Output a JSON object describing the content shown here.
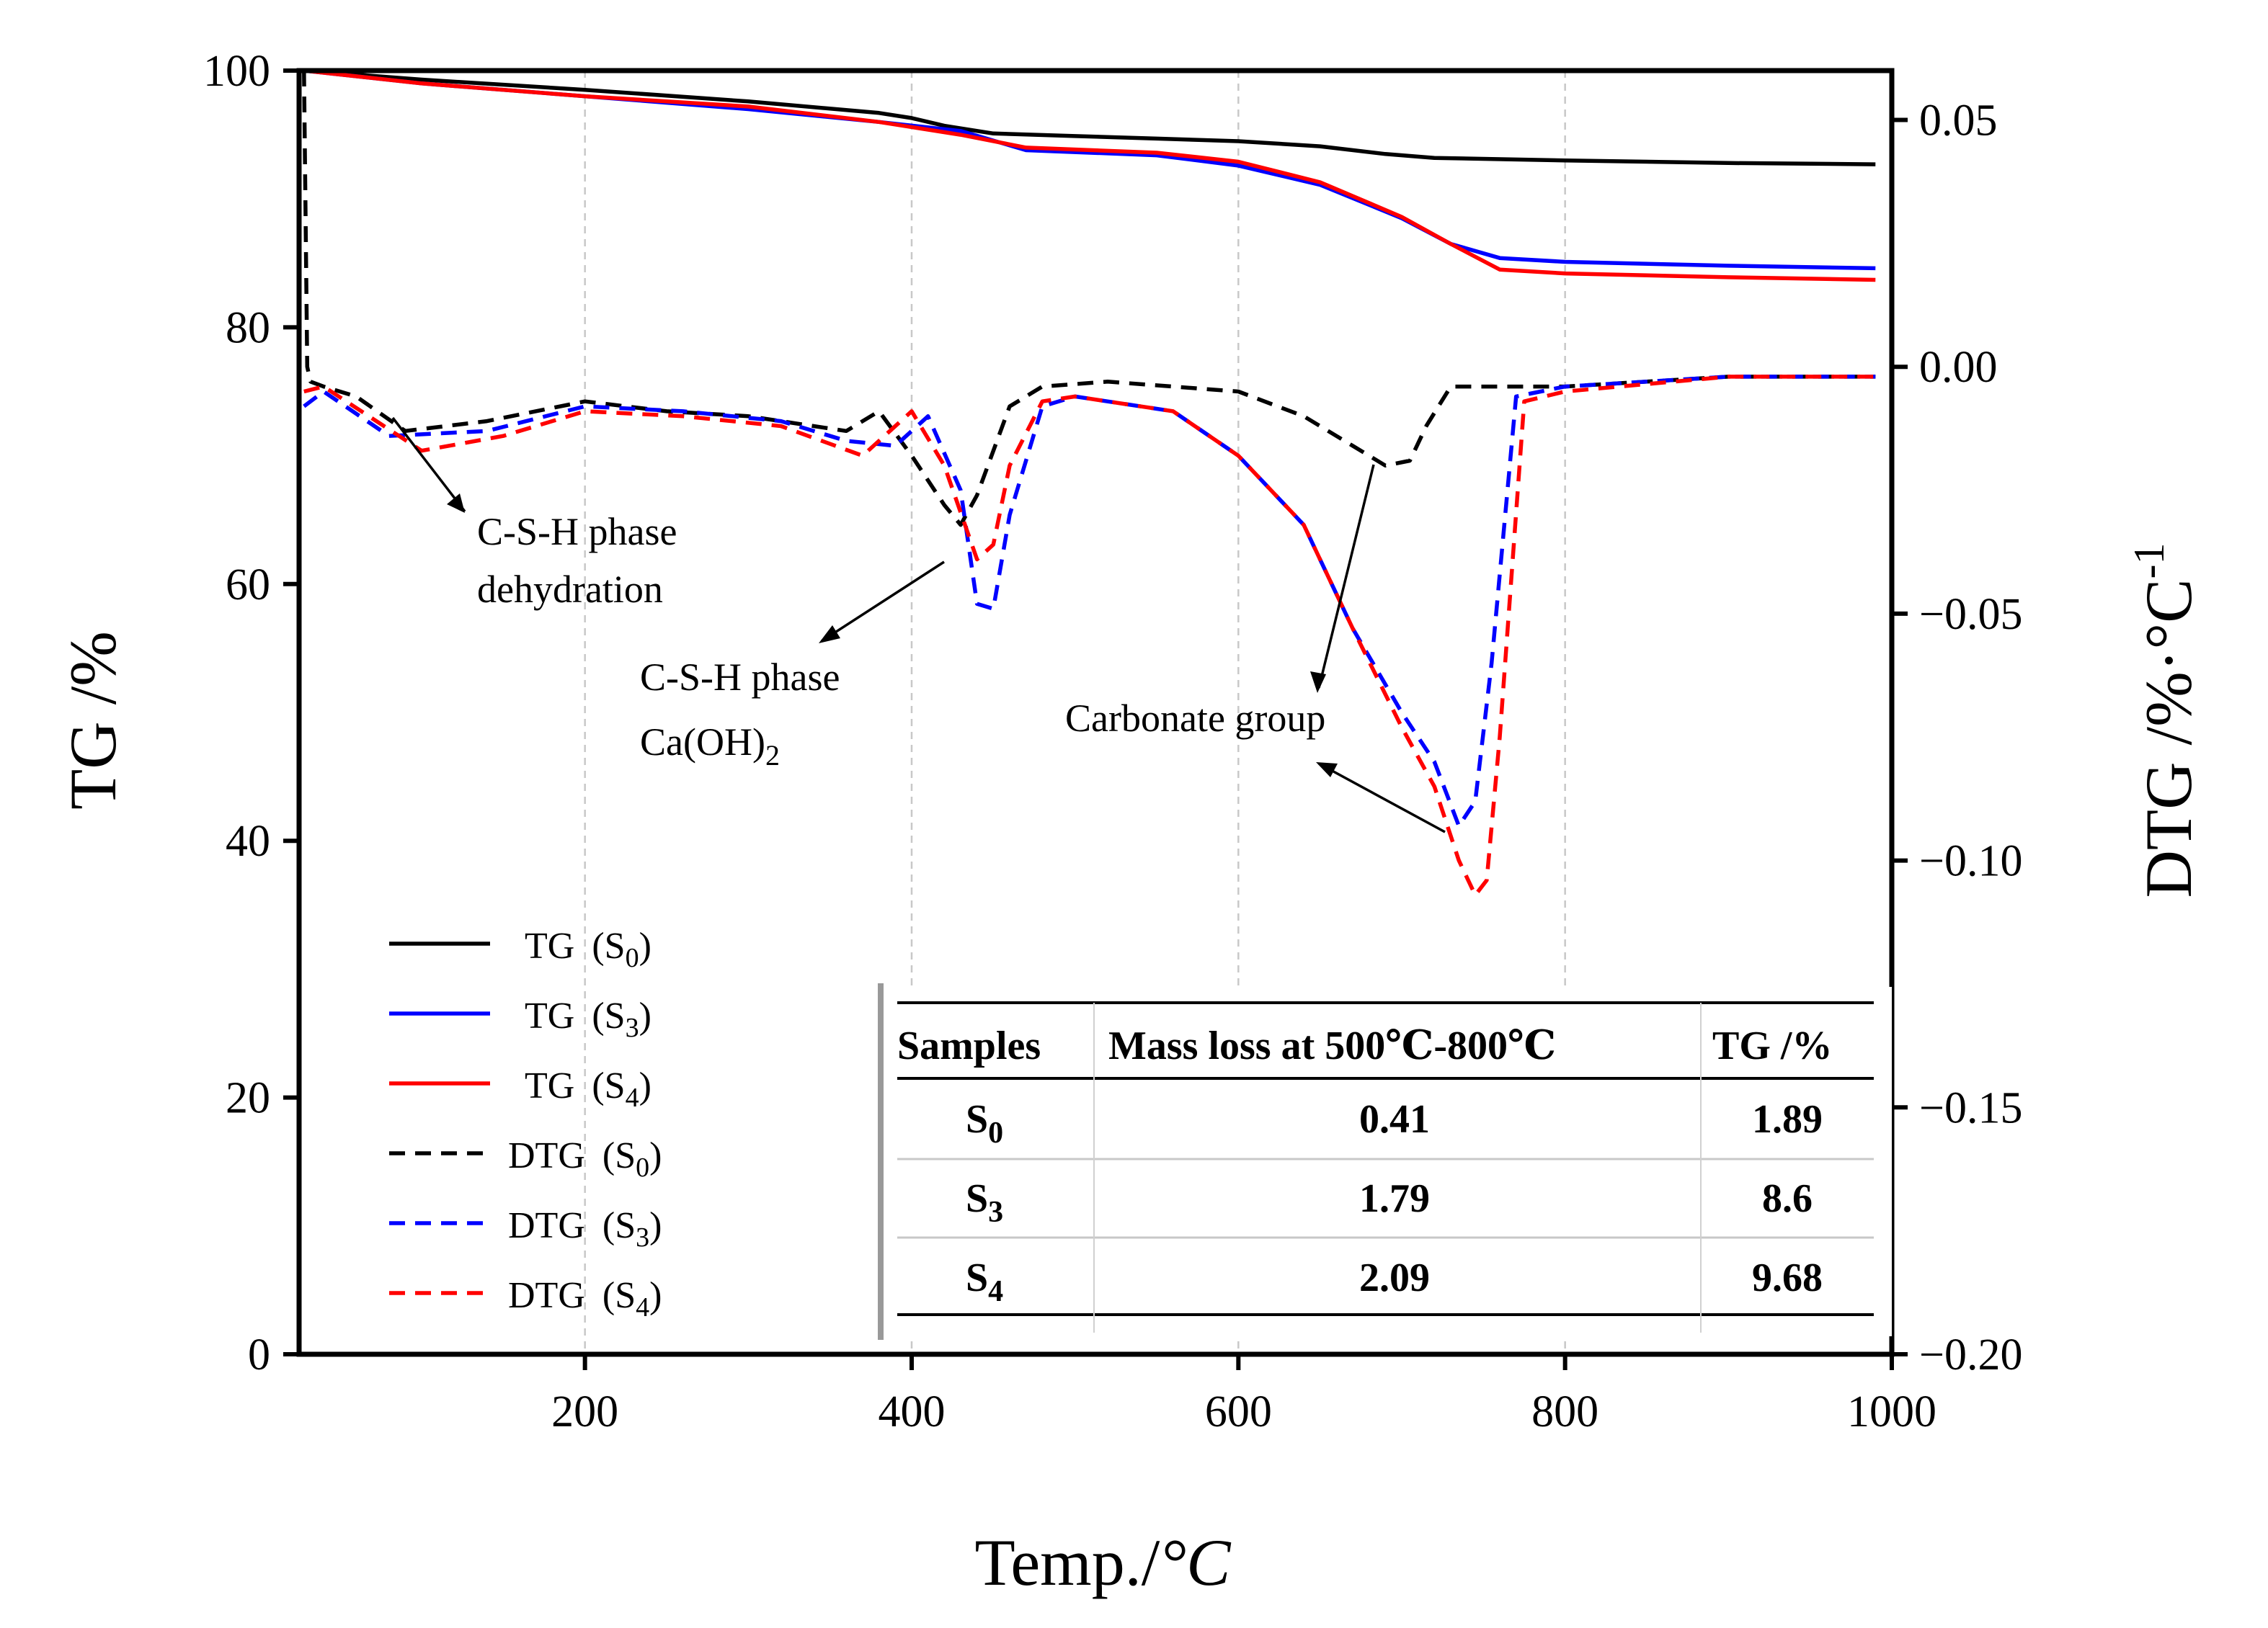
{
  "chart_data": {
    "type": "line",
    "xlabel": "Temp./",
    "xlabel_unit": "°C",
    "ylabel_left": "TG /%",
    "ylabel_right": "DTG /%·°C",
    "ylabel_right_sup": "-1",
    "xlim": [
      25,
      1000
    ],
    "ylim_left": [
      0,
      100
    ],
    "ylim_right": [
      -0.2,
      0.06
    ],
    "x_ticks": [
      "200",
      "400",
      "600",
      "800",
      "1000"
    ],
    "x_tick_values": [
      200,
      400,
      600,
      800,
      1000
    ],
    "y_left_ticks": [
      "0",
      "20",
      "40",
      "60",
      "80",
      "100"
    ],
    "y_left_tick_values": [
      0,
      20,
      40,
      60,
      80,
      100
    ],
    "y_right_ticks": [
      "−0.20",
      "−0.15",
      "−0.10",
      "−0.05",
      "0.00",
      "0.05"
    ],
    "y_right_tick_values": [
      -0.2,
      -0.15,
      -0.1,
      -0.05,
      0.0,
      0.05
    ],
    "grid": "vertical dashed",
    "series": [
      {
        "name": "TG",
        "sample": "S",
        "sub": "0",
        "axis": "left",
        "style": "solid",
        "color": "#000000",
        "x": [
          28,
          100,
          200,
          300,
          380,
          400,
          420,
          450,
          500,
          550,
          600,
          650,
          690,
          720,
          800,
          900,
          990
        ],
        "y": [
          100,
          99.3,
          98.5,
          97.6,
          96.7,
          96.3,
          95.7,
          95.1,
          94.9,
          94.7,
          94.5,
          94.1,
          93.5,
          93.2,
          93.0,
          92.8,
          92.7
        ]
      },
      {
        "name": "TG",
        "sample": "S",
        "sub": "3",
        "axis": "left",
        "style": "solid",
        "color": "#0000ff",
        "x": [
          28,
          100,
          200,
          300,
          380,
          430,
          470,
          550,
          600,
          650,
          700,
          730,
          760,
          800,
          900,
          990
        ],
        "y": [
          100,
          99.0,
          98.0,
          97.0,
          96.0,
          95.3,
          93.8,
          93.4,
          92.6,
          91.1,
          88.5,
          86.5,
          85.4,
          85.1,
          84.8,
          84.6
        ]
      },
      {
        "name": "TG",
        "sample": "S",
        "sub": "4",
        "axis": "left",
        "style": "solid",
        "color": "#ff0000",
        "x": [
          28,
          100,
          200,
          300,
          380,
          430,
          470,
          550,
          600,
          650,
          700,
          730,
          760,
          800,
          900,
          990
        ],
        "y": [
          100,
          99.0,
          98.0,
          97.2,
          96.0,
          95.0,
          94.0,
          93.6,
          92.9,
          91.3,
          88.6,
          86.5,
          84.5,
          84.2,
          83.9,
          83.7
        ]
      },
      {
        "name": "DTG",
        "sample": "S",
        "sub": "0",
        "axis": "right",
        "style": "dashed",
        "color": "#000000",
        "x": [
          28,
          30,
          32,
          40,
          60,
          90,
          140,
          200,
          250,
          300,
          340,
          360,
          380,
          400,
          420,
          430,
          440,
          460,
          480,
          520,
          600,
          640,
          670,
          690,
          705,
          715,
          730,
          800,
          900,
          990
        ],
        "y": [
          0.06,
          0.0,
          -0.003,
          -0.004,
          -0.006,
          -0.013,
          -0.011,
          -0.007,
          -0.009,
          -0.01,
          -0.012,
          -0.013,
          -0.009,
          -0.018,
          -0.028,
          -0.032,
          -0.026,
          -0.008,
          -0.004,
          -0.003,
          -0.005,
          -0.01,
          -0.016,
          -0.02,
          -0.019,
          -0.012,
          -0.004,
          -0.004,
          -0.002,
          -0.002
        ]
      },
      {
        "name": "DTG",
        "sample": "S",
        "sub": "3",
        "axis": "right",
        "style": "dashed",
        "color": "#0000ff",
        "x": [
          28,
          40,
          80,
          140,
          200,
          260,
          320,
          360,
          390,
          410,
          430,
          440,
          450,
          460,
          480,
          500,
          560,
          600,
          640,
          670,
          700,
          720,
          735,
          745,
          755,
          770,
          800,
          900,
          990
        ],
        "y": [
          -0.008,
          -0.005,
          -0.014,
          -0.013,
          -0.008,
          -0.009,
          -0.011,
          -0.015,
          -0.016,
          -0.01,
          -0.025,
          -0.048,
          -0.049,
          -0.03,
          -0.008,
          -0.006,
          -0.009,
          -0.018,
          -0.032,
          -0.053,
          -0.07,
          -0.08,
          -0.093,
          -0.088,
          -0.06,
          -0.006,
          -0.004,
          -0.002,
          -0.002
        ]
      },
      {
        "name": "DTG",
        "sample": "S",
        "sub": "4",
        "axis": "right",
        "style": "dashed",
        "color": "#ff0000",
        "x": [
          28,
          40,
          100,
          150,
          200,
          260,
          320,
          370,
          400,
          420,
          440,
          450,
          460,
          480,
          500,
          560,
          600,
          640,
          670,
          700,
          720,
          735,
          745,
          752,
          760,
          775,
          800,
          900,
          990
        ],
        "y": [
          -0.005,
          -0.004,
          -0.017,
          -0.014,
          -0.009,
          -0.01,
          -0.012,
          -0.018,
          -0.009,
          -0.02,
          -0.039,
          -0.036,
          -0.02,
          -0.007,
          -0.006,
          -0.009,
          -0.018,
          -0.032,
          -0.053,
          -0.073,
          -0.085,
          -0.1,
          -0.107,
          -0.104,
          -0.075,
          -0.007,
          -0.005,
          -0.002,
          -0.002
        ]
      }
    ],
    "annotations": [
      {
        "lines": [
          "C-S-H phase",
          "dehydration"
        ]
      },
      {
        "lines": [
          "C-S-H phase",
          "Ca(OH)"
        ],
        "line2_sub": "2"
      },
      {
        "lines": [
          "Carbonate group"
        ]
      }
    ],
    "table": {
      "headers": [
        "Samples",
        "Mass loss at 500℃-800℃",
        "TG /%"
      ],
      "rows": [
        {
          "sample": "S",
          "sub": "0",
          "mass_loss": "0.41",
          "tg": "1.89"
        },
        {
          "sample": "S",
          "sub": "3",
          "mass_loss": "1.79",
          "tg": "8.6"
        },
        {
          "sample": "S",
          "sub": "4",
          "mass_loss": "2.09",
          "tg": "9.68"
        }
      ]
    },
    "legend_position": "bottom-left"
  }
}
